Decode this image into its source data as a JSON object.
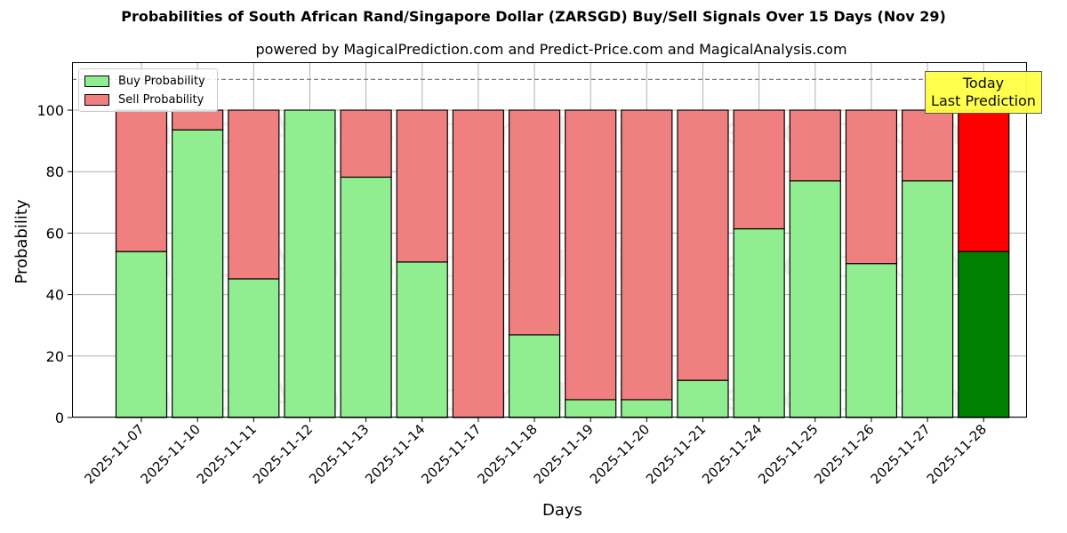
{
  "chart_data": {
    "type": "bar",
    "stacked": true,
    "title": "Probabilities of South African Rand/Singapore Dollar (ZARSGD) Buy/Sell Signals Over 15 Days (Nov 29)",
    "subtitle": "powered by MagicalPrediction.com and Predict-Price.com and MagicalAnalysis.com",
    "xlabel": "Days",
    "ylabel": "Probability",
    "ylim": [
      0,
      115
    ],
    "yticks": [
      0,
      20,
      40,
      60,
      80,
      100
    ],
    "grid": true,
    "legend_position": "upper left",
    "reference_line": {
      "y": 110,
      "style": "dashed",
      "color": "#808080"
    },
    "categories": [
      "2025-11-07",
      "2025-11-10",
      "2025-11-11",
      "2025-11-12",
      "2025-11-13",
      "2025-11-14",
      "2025-11-17",
      "2025-11-18",
      "2025-11-19",
      "2025-11-20",
      "2025-11-21",
      "2025-11-24",
      "2025-11-25",
      "2025-11-26",
      "2025-11-27",
      "2025-11-28"
    ],
    "series": [
      {
        "name": "Buy Probability",
        "color": "#90ee90",
        "values": [
          54.0,
          93.6,
          45.1,
          100.0,
          78.2,
          50.6,
          0.0,
          26.9,
          5.8,
          5.8,
          12.1,
          61.4,
          77.0,
          50.1,
          77.0,
          54.0
        ]
      },
      {
        "name": "Sell Probability",
        "color": "#f08080",
        "values": [
          46.0,
          6.4,
          54.9,
          0.0,
          21.8,
          49.4,
          100.0,
          73.1,
          94.2,
          94.2,
          87.9,
          38.6,
          23.0,
          49.9,
          23.0,
          46.0
        ]
      }
    ],
    "highlight": {
      "index": 15,
      "buy_color": "#008000",
      "sell_color": "#ff0000",
      "annotation": "Today\nLast Prediction",
      "annotation_bg": "#ffff44"
    },
    "watermarks": [
      "MagicalAnalysis.com",
      "MagicalPrediction.com"
    ]
  },
  "legend": {
    "buy_label": "Buy Probability",
    "sell_label": "Sell Probability"
  },
  "annotation": {
    "line1": "Today",
    "line2": "Last Prediction"
  }
}
